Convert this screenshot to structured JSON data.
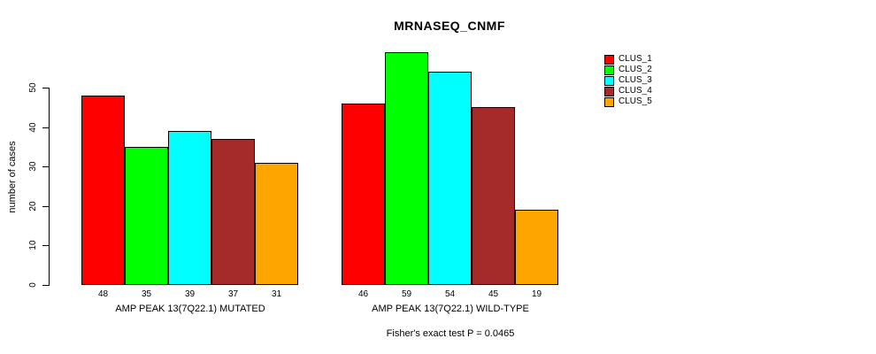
{
  "title": "MRNASEQ_CNMF",
  "chart_data": {
    "type": "bar",
    "title": "MRNASEQ_CNMF",
    "ylabel": "number of cases",
    "ylim": [
      0,
      59
    ],
    "yticks": [
      0,
      10,
      20,
      30,
      40,
      50
    ],
    "grid": false,
    "legend_position": "top-right",
    "categories": [
      "CLUS_1",
      "CLUS_2",
      "CLUS_3",
      "CLUS_4",
      "CLUS_5"
    ],
    "legend_labels": [
      "CLUS_1",
      "CLUS_2",
      "CLUS_3",
      "CLUS_4",
      "CLUS_5"
    ],
    "series_colors": [
      "#FF0000",
      "#00FF00",
      "#00FFFF",
      "#A52A2A",
      "#FFA500"
    ],
    "groups": [
      {
        "label": "AMP PEAK 13(7Q22.1) MUTATED",
        "values": [
          48,
          35,
          39,
          37,
          31
        ]
      },
      {
        "label": "AMP PEAK 13(7Q22.1) WILD-TYPE",
        "values": [
          46,
          59,
          54,
          45,
          19
        ]
      }
    ],
    "annotation": "Fisher's exact test P = 0.0465"
  }
}
